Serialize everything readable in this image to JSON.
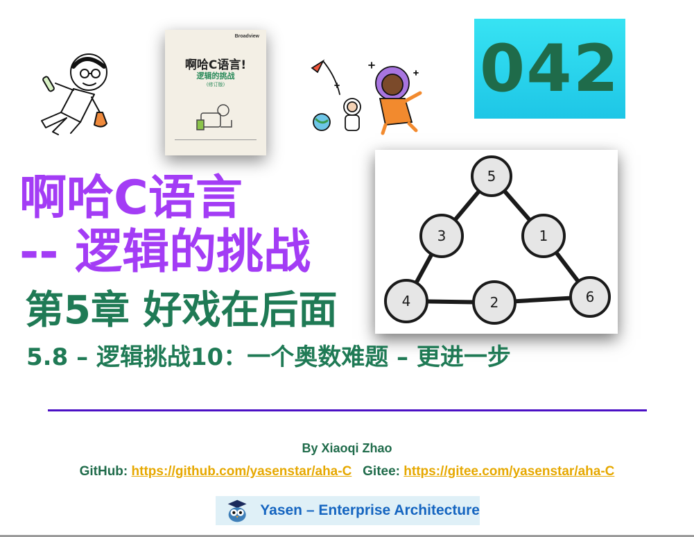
{
  "badge": {
    "number": "042"
  },
  "book": {
    "title": "啊哈C语言!",
    "subtitle": "逻辑的挑战",
    "edition": "(修订版)",
    "publisher_mark": "Broadview"
  },
  "title": {
    "line1": "啊哈C语言",
    "line2": "-- 逻辑的挑战",
    "chapter": "第5章 好戏在后面",
    "section": "5.8 – 逻辑挑战10：一个奥数难题 – 更进一步"
  },
  "graph": {
    "nodes": [
      "5",
      "3",
      "1",
      "4",
      "2",
      "6"
    ]
  },
  "footer": {
    "author": "By Xiaoqi Zhao",
    "github_label": "GitHub:",
    "github_url": "https://github.com/yasenstar/aha-C",
    "gitee_label": "Gitee:",
    "gitee_url": "https://gitee.com/yasenstar/aha-C",
    "brand": "Yasen – Enterprise Architecture"
  },
  "colors": {
    "title_purple": "#a33cf5",
    "heading_green": "#1f7a55",
    "badge_cyan": "#2bd6ee",
    "divider": "#4b10c5",
    "link": "#e6a800",
    "brand_blue": "#1565c0"
  },
  "icons": [
    "scientist-illustration",
    "book-cover",
    "astronauts-illustration",
    "owl-logo-icon"
  ]
}
